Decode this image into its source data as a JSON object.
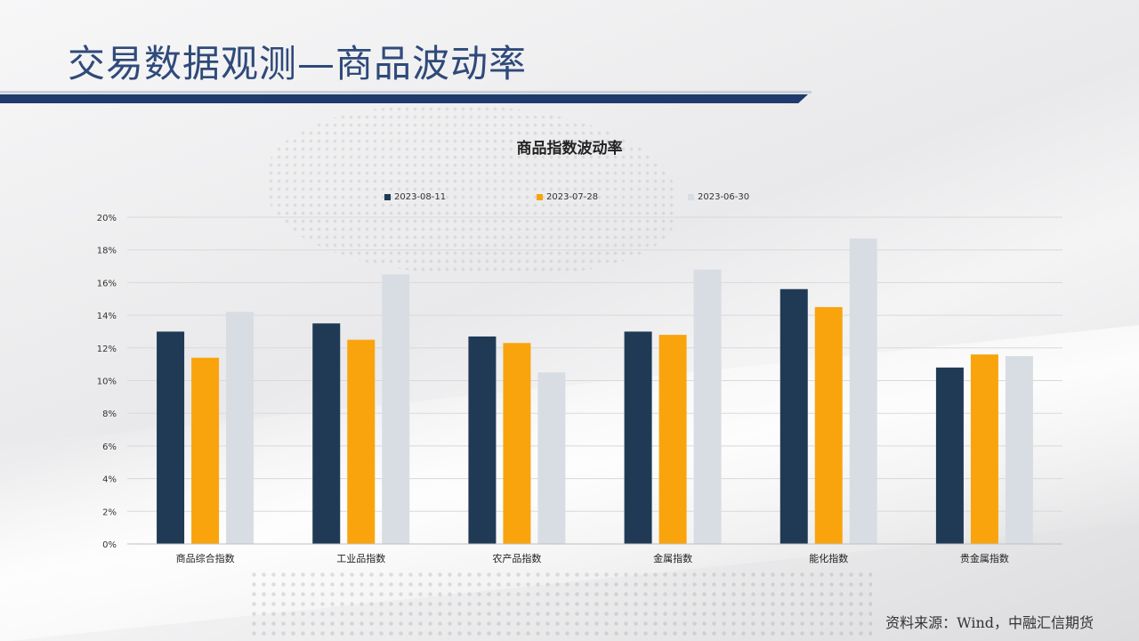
{
  "slide": {
    "title": "交易数据观测—商品波动率",
    "source": "资料来源：Wind，中融汇信期货"
  },
  "colors": {
    "title_text": "#2f4a7a",
    "title_bar": "#1f3b6e",
    "gridline": "#d9d9d9"
  },
  "chart_data": {
    "type": "bar",
    "title": "商品指数波动率",
    "xlabel": "",
    "ylabel": "",
    "categories": [
      "商品综合指数",
      "工业品指数",
      "农产品指数",
      "金属指数",
      "能化指数",
      "贵金属指数"
    ],
    "series": [
      {
        "name": "2023-08-11",
        "color": "#203a56",
        "values": [
          13.0,
          13.5,
          12.7,
          13.0,
          15.6,
          10.8
        ]
      },
      {
        "name": "2023-07-28",
        "color": "#f9a40d",
        "values": [
          11.4,
          12.5,
          12.3,
          12.8,
          14.5,
          11.6
        ]
      },
      {
        "name": "2023-06-30",
        "color": "#d8dde3",
        "values": [
          14.2,
          16.5,
          10.5,
          16.8,
          18.7,
          11.5
        ]
      }
    ],
    "ylim": [
      0,
      20
    ],
    "yticks": [
      "0%",
      "2%",
      "4%",
      "6%",
      "8%",
      "10%",
      "12%",
      "14%",
      "16%",
      "18%",
      "20%"
    ],
    "grid": true,
    "legend_position": "top"
  }
}
